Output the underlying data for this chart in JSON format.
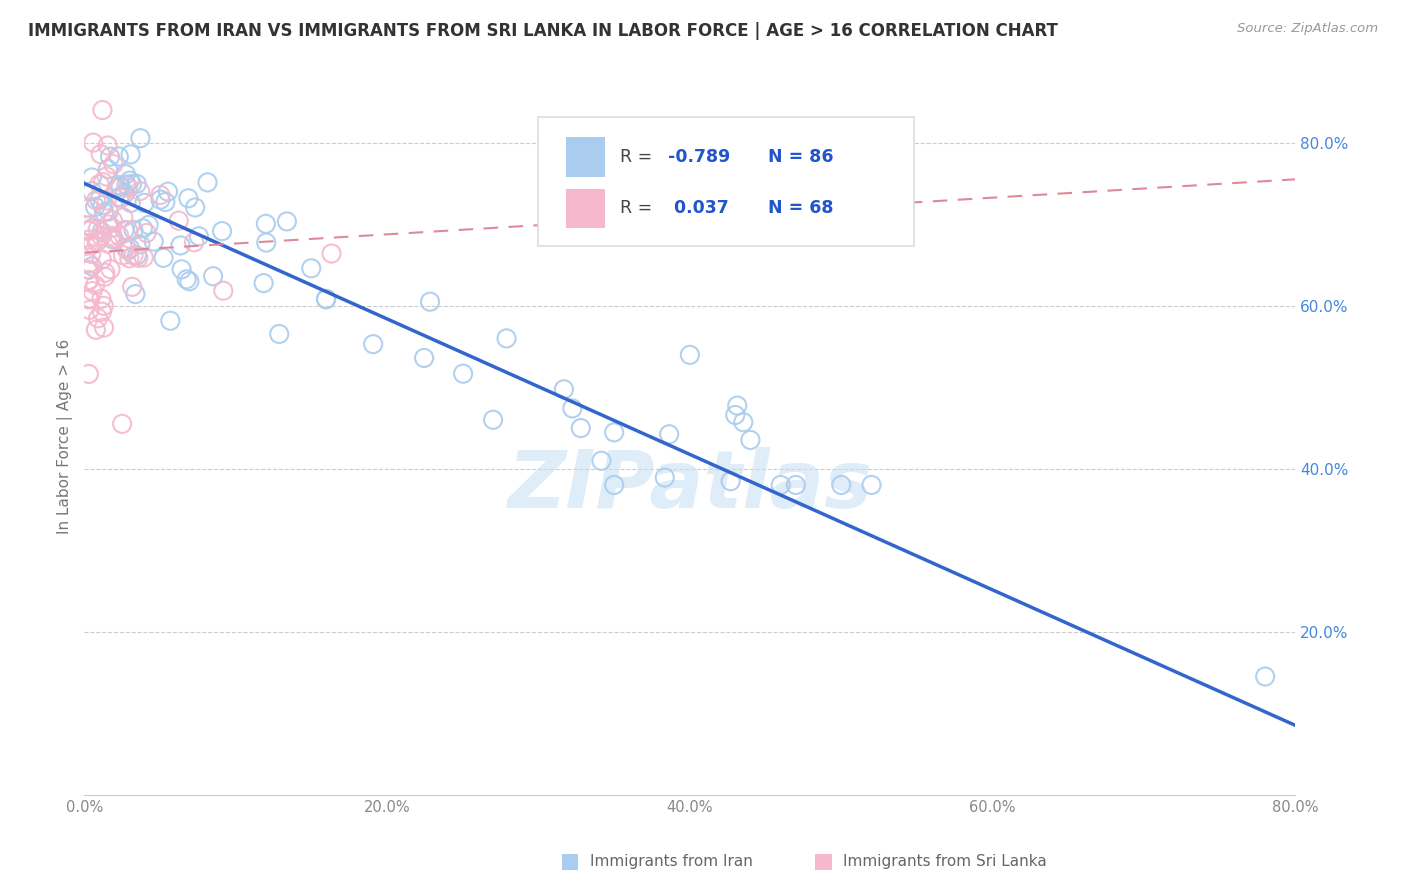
{
  "title": "IMMIGRANTS FROM IRAN VS IMMIGRANTS FROM SRI LANKA IN LABOR FORCE | AGE > 16 CORRELATION CHART",
  "source": "Source: ZipAtlas.com",
  "ylabel_label": "In Labor Force | Age > 16",
  "watermark_text": "ZIPatlas",
  "iran_scatter_color": "#aaccee",
  "srilanka_scatter_color": "#f5b8cc",
  "iran_line_color": "#3366cc",
  "srilanka_line_color": "#e08898",
  "background_color": "#ffffff",
  "grid_color": "#cccccc",
  "title_color": "#333333",
  "right_tick_color": "#4488dd",
  "bottom_tick_color": "#888888",
  "xlim": [
    0.0,
    0.8
  ],
  "ylim": [
    0.0,
    0.88
  ],
  "x_ticks": [
    0.0,
    0.1,
    0.2,
    0.3,
    0.4,
    0.5,
    0.6,
    0.7,
    0.8
  ],
  "x_labels": [
    "0.0%",
    "",
    "20.0%",
    "",
    "40.0%",
    "",
    "60.0%",
    "",
    "80.0%"
  ],
  "y_ticks": [
    0.2,
    0.4,
    0.6,
    0.8
  ],
  "y_labels": [
    "20.0%",
    "40.0%",
    "60.0%",
    "80.0%"
  ],
  "legend_iran_color": "#aaccee",
  "legend_sri_color": "#f5b8cc",
  "iran_R": "-0.789",
  "iran_N": "86",
  "sri_R": "0.037",
  "sri_N": "68",
  "legend_label_iran": "Immigrants from Iran",
  "legend_label_sri": "Immigrants from Sri Lanka",
  "iran_line_x0": 0.0,
  "iran_line_y0": 0.75,
  "iran_line_x1": 0.8,
  "iran_line_y1": 0.085,
  "sri_line_x0": 0.0,
  "sri_line_y0": 0.665,
  "sri_line_x1": 0.8,
  "sri_line_y1": 0.755
}
